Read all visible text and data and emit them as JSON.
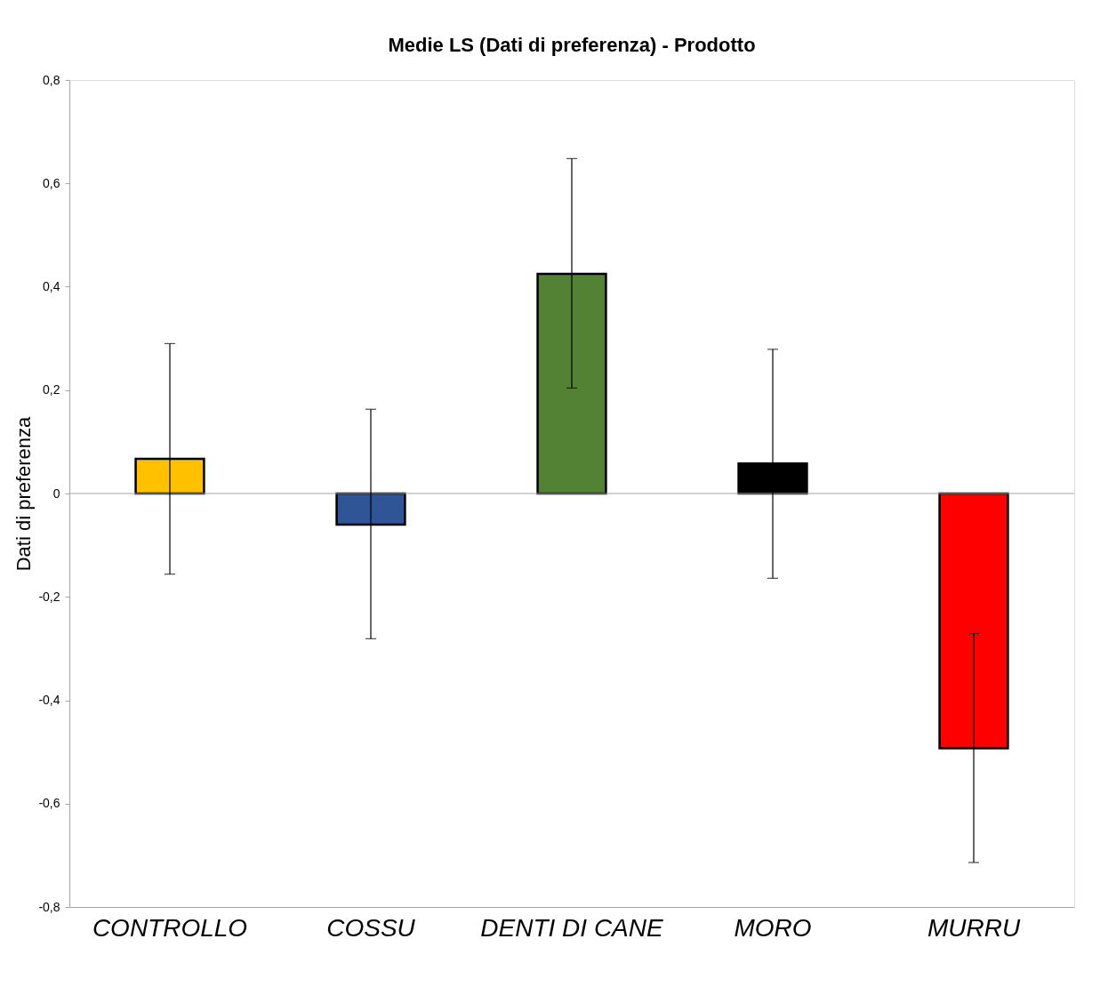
{
  "chart_data": {
    "type": "bar",
    "title": "Medie LS (Dati di preferenza) - Prodotto",
    "ylabel": "Dati di preferenza",
    "categories": [
      "CONTROLLO",
      "COSSU",
      "DENTI DI CANE",
      "MORO",
      "MURRU"
    ],
    "values": [
      0.067,
      -0.06,
      0.425,
      0.058,
      -0.493
    ],
    "colors": [
      "#ffc000",
      "#2f5597",
      "#548235",
      "#000000",
      "#ff0000"
    ],
    "errors": [
      [
        -0.156,
        0.29
      ],
      [
        -0.281,
        0.163
      ],
      [
        0.204,
        0.648
      ],
      [
        -0.164,
        0.279
      ],
      [
        -0.714,
        -0.271
      ]
    ],
    "ylim": [
      -0.8,
      0.8
    ],
    "yticks": [
      {
        "value": -0.8,
        "label": "-0,8"
      },
      {
        "value": -0.6,
        "label": "-0,6"
      },
      {
        "value": -0.4,
        "label": "-0,4"
      },
      {
        "value": -0.2,
        "label": "-0,2"
      },
      {
        "value": 0,
        "label": "0"
      },
      {
        "value": 0.2,
        "label": "0,2"
      },
      {
        "value": 0.4,
        "label": "0,4"
      },
      {
        "value": 0.6,
        "label": "0,6"
      },
      {
        "value": 0.8,
        "label": "0,8"
      }
    ],
    "ref_lines": [
      {
        "axis": "y",
        "value": 0,
        "color": "#a6a6a6"
      }
    ],
    "grid": false
  }
}
